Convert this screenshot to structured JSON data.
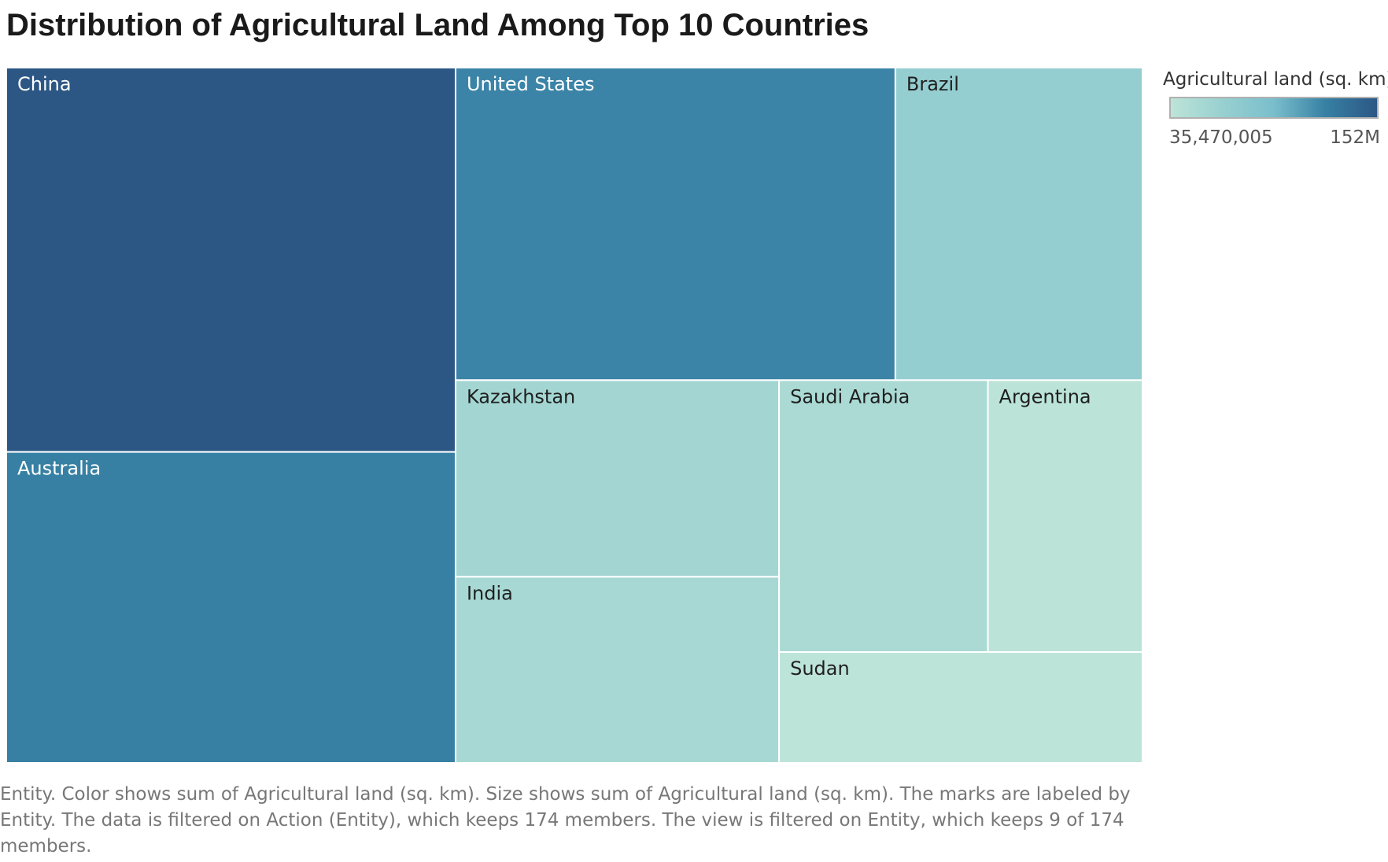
{
  "chart_data": {
    "type": "treemap",
    "title": "Distribution of Agricultural Land Among Top 10 Countries",
    "measure": "Agricultural land (sq. km)",
    "color_range": [
      "#bde4d8",
      "#2c5785"
    ],
    "items": [
      {
        "name": "China",
        "value": 152000000
      },
      {
        "name": "Australia",
        "value": 123000000
      },
      {
        "name": "United States",
        "value": 121000000
      },
      {
        "name": "Brazil",
        "value": 68000000
      },
      {
        "name": "Kazakhstan",
        "value": 56000000
      },
      {
        "name": "India",
        "value": 53000000
      },
      {
        "name": "Saudi Arabia",
        "value": 50000000
      },
      {
        "name": "Argentina",
        "value": 37000000
      },
      {
        "name": "Sudan",
        "value": 35470005
      }
    ],
    "legend": {
      "title": "Agricultural land (sq. km)",
      "min_label": "35,470,005",
      "max_label": "152M"
    }
  },
  "caption": "Entity.  Color shows sum of Agricultural land (sq. km).  Size shows sum of Agricultural land (sq. km).  The marks are labeled by Entity. The data is filtered on Action (Entity), which keeps 174 members. The view is filtered on Entity, which keeps 9 of 174 members."
}
